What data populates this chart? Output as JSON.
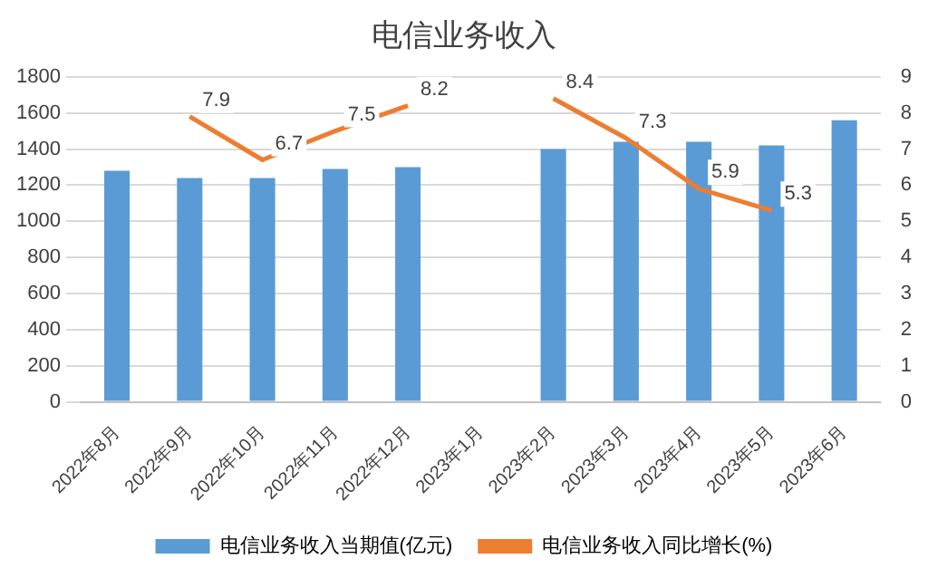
{
  "chart_data": {
    "type": "bar",
    "title": "电信业务收入",
    "categories": [
      "2022年8月",
      "2022年9月",
      "2022年10月",
      "2022年11月",
      "2022年12月",
      "2023年1月",
      "2023年2月",
      "2023年3月",
      "2023年4月",
      "2023年5月",
      "2023年6月"
    ],
    "series": [
      {
        "name": "电信业务收入当期值(亿元)",
        "color": "#5b9bd5",
        "values": [
          1280,
          1240,
          1240,
          1290,
          1300,
          null,
          1400,
          1440,
          1440,
          1420,
          1560
        ]
      },
      {
        "name": "电信业务收入同比增长(%)",
        "type": "line",
        "axis": "y2",
        "color": "#ed7d31",
        "values": [
          null,
          7.9,
          6.7,
          7.5,
          8.2,
          null,
          8.4,
          7.3,
          5.9,
          5.3,
          null
        ],
        "value_labels": [
          null,
          "7.9",
          "6.7",
          "7.5",
          "8.2",
          null,
          "8.4",
          "7.3",
          "5.9",
          "5.3",
          null
        ]
      }
    ],
    "ylim": [
      0,
      1800
    ],
    "yticks": [
      0,
      200,
      400,
      600,
      800,
      1000,
      1200,
      1400,
      1600,
      1800
    ],
    "y2lim": [
      0,
      9
    ],
    "y2ticks": [
      0,
      1,
      2,
      3,
      4,
      5,
      6,
      7,
      8,
      9
    ],
    "grid": "y",
    "legend": "bottom",
    "marker": "none"
  }
}
